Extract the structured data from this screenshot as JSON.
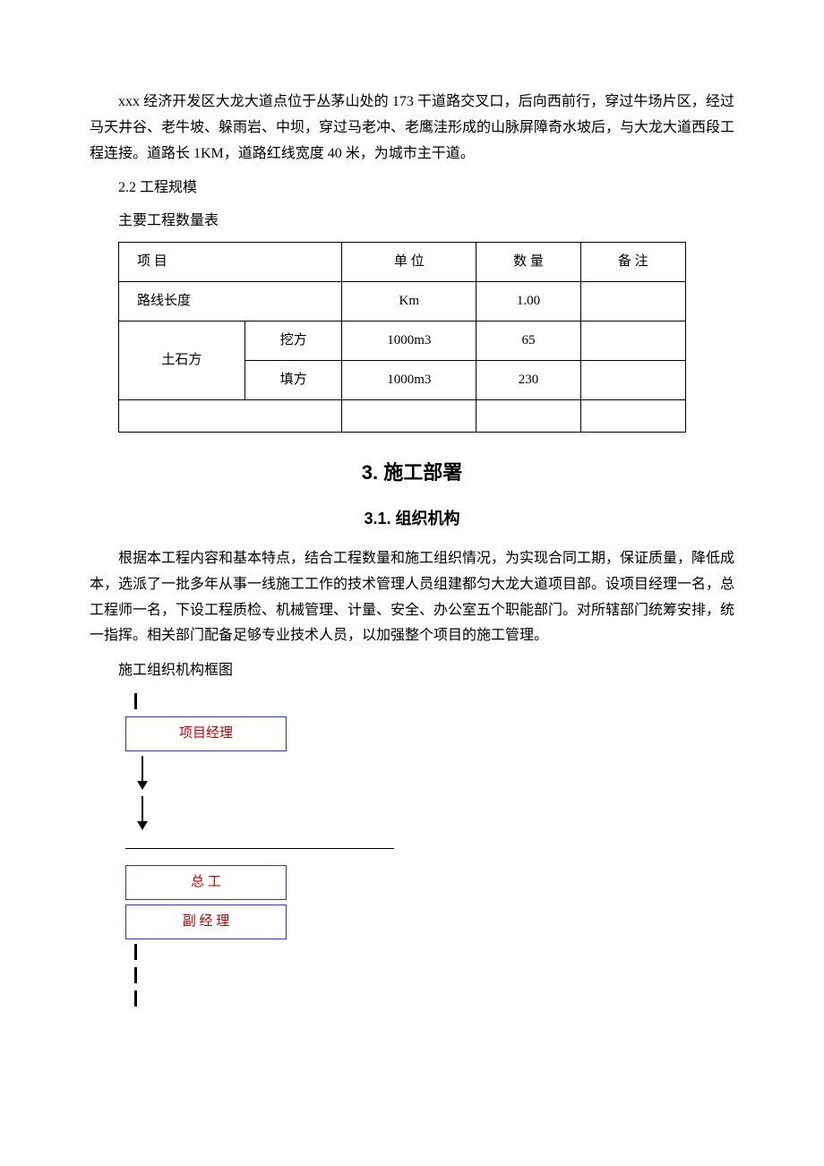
{
  "intro_paragraph": "xxx 经济开发区大龙大道点位于丛茅山处的 173 干道路交叉口，后向西前行，穿过牛场片区，经过马天井谷、老牛坡、躲雨岩、中坝，穿过马老冲、老鹰洼形成的山脉屏障奇水坡后，与大龙大道西段工程连接。道路长 1KM，道路红线宽度 40 米，为城市主干道。",
  "section_2_2": "2.2 工程规模",
  "table_caption": "主要工程数量表",
  "table": {
    "headers": [
      "项 目",
      "单 位",
      "数 量",
      "备 注"
    ],
    "rows": [
      {
        "item": "路线长度",
        "sub": "",
        "unit": "Km",
        "qty": "1.00",
        "note": ""
      },
      {
        "item": "土石方",
        "sub": "挖方",
        "unit": "1000m3",
        "qty": "65",
        "note": ""
      },
      {
        "item": "",
        "sub": "填方",
        "unit": "1000m3",
        "qty": "230",
        "note": ""
      },
      {
        "item": "",
        "sub": "",
        "unit": "",
        "qty": "",
        "note": ""
      }
    ]
  },
  "heading_3": "3. 施工部署",
  "heading_3_1": "3.1. 组织机构",
  "para_3_1": "根据本工程内容和基本特点，结合工程数量和施工组织情况，为实现合同工期，保证质量，降低成本，选派了一批多年从事一线施工工作的技术管理人员组建都匀大龙大道项目部。设项目经理一名，总工程师一名，下设工程质检、机械管理、计量、安全、办公室五个职能部门。对所辖部门统筹安排，统一指挥。相关部门配备足够专业技术人员，以加强整个项目的施工管理。",
  "org_chart_title": "施工组织机构框图",
  "org": {
    "box1": "项目经理",
    "box2": "总 工",
    "box3": "副 经 理"
  },
  "style": {
    "box_border_color": "#3333cc",
    "box_text_color": "#cc0000",
    "table_border_color": "#000000"
  }
}
